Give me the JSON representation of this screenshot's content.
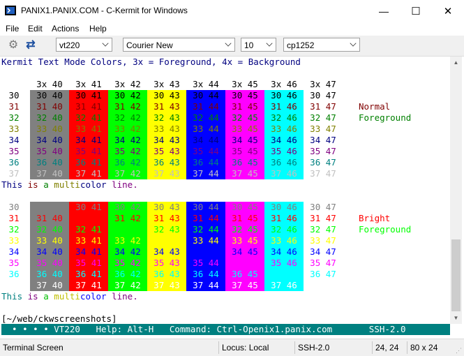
{
  "window": {
    "title": "PANIX1.PANIX.COM - C-Kermit for Windows",
    "min_glyph": "—",
    "max_glyph": "☐",
    "close_glyph": "✕"
  },
  "menu": [
    "File",
    "Edit",
    "Actions",
    "Help"
  ],
  "toolbar": {
    "terminal_type": "vt220",
    "font": "Courier New",
    "font_size": "10",
    "charset": "cp1252"
  },
  "terminal": {
    "heading": "Kermit Text Mode Colors, 3x = Foreground, 4x = Background",
    "col_headers": [
      "3x 40",
      "3x 41",
      "3x 42",
      "3x 43",
      "3x 44",
      "3x 45",
      "3x 46",
      "3x 47"
    ],
    "row_labels": [
      "30",
      "31",
      "32",
      "33",
      "34",
      "35",
      "36",
      "37"
    ],
    "cells": [
      [
        "30 40",
        "30 41",
        "30 42",
        "30 43",
        "30 44",
        "30 45",
        "30 46",
        "30 47"
      ],
      [
        "31 40",
        "31 41",
        "31 42",
        "31 43",
        "31 44",
        "31 45",
        "31 46",
        "31 47"
      ],
      [
        "32 40",
        "32 41",
        "32 42",
        "32 43",
        "32 44",
        "32 45",
        "32 46",
        "32 47"
      ],
      [
        "33 40",
        "33 41",
        "33 42",
        "33 43",
        "33 44",
        "33 45",
        "33 46",
        "33 47"
      ],
      [
        "34 40",
        "34 41",
        "34 42",
        "34 43",
        "34 44",
        "34 45",
        "34 46",
        "34 47"
      ],
      [
        "35 40",
        "35 41",
        "35 42",
        "35 43",
        "35 44",
        "35 45",
        "35 46",
        "35 47"
      ],
      [
        "36 40",
        "36 41",
        "36 42",
        "36 43",
        "36 44",
        "36 45",
        "36 46",
        "36 47"
      ],
      [
        "37 40",
        "37 41",
        "37 42",
        "37 43",
        "37 44",
        "37 45",
        "37 46",
        "37 47"
      ]
    ],
    "normal_label_1": "Normal",
    "normal_label_2": "Foreground",
    "bright_label_1": "Bright",
    "bright_label_2": "Foreground",
    "multicolor_words": [
      "This",
      " ",
      "is",
      " ",
      "a",
      " ",
      "multi",
      "color",
      " ",
      "line."
    ],
    "prompt": "[~/web/ckwscreenshots]"
  },
  "colors": {
    "bg_normal": [
      "#808080",
      "#ff0000",
      "#00ff00",
      "#ffff00",
      "#0000ff",
      "#ff00ff",
      "#00ffff",
      "#ffffff"
    ],
    "fg_normal": [
      "#000000",
      "#800000",
      "#008000",
      "#808000",
      "#000080",
      "#800080",
      "#008080",
      "#c0c0c0"
    ],
    "fg_bright": [
      "#808080",
      "#ff0000",
      "#00ff00",
      "#ffff00",
      "#0000ff",
      "#ff00ff",
      "#00ffff",
      "#ffffff"
    ],
    "heading": "#000080",
    "status_bg": "#008080"
  },
  "kermit_status": "  • • • • VT220   Help: Alt-H   Command: Ctrl-Openix1.panix.com       SSH-2.0 ",
  "statusbar": {
    "mode": "Terminal Screen",
    "locus": "Locus: Local",
    "protocol": "SSH-2.0",
    "cursor": "24, 24",
    "size": "80 x 24"
  }
}
